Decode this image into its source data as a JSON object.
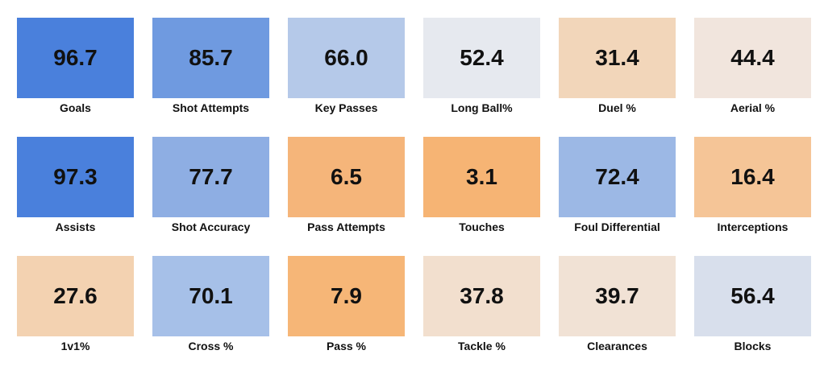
{
  "chart_data": {
    "type": "heatmap",
    "title": "",
    "metrics": [
      {
        "label": "Goals",
        "value": 96.7,
        "color": "#4a80dc"
      },
      {
        "label": "Shot Attempts",
        "value": 85.7,
        "color": "#6f9ae0"
      },
      {
        "label": "Key Passes",
        "value": 66.0,
        "color": "#b5c9e9"
      },
      {
        "label": "Long Ball%",
        "value": 52.4,
        "color": "#e6e9ef"
      },
      {
        "label": "Duel %",
        "value": 31.4,
        "color": "#f2d6ba"
      },
      {
        "label": "Aerial %",
        "value": 44.4,
        "color": "#f1e5dd"
      },
      {
        "label": "Assists",
        "value": 97.3,
        "color": "#4a80dc"
      },
      {
        "label": "Shot Accuracy",
        "value": 77.7,
        "color": "#8eaee3"
      },
      {
        "label": "Pass Attempts",
        "value": 6.5,
        "color": "#f5b57a"
      },
      {
        "label": "Touches",
        "value": 3.1,
        "color": "#f6b474"
      },
      {
        "label": "Foul Differential",
        "value": 72.4,
        "color": "#9cb8e5"
      },
      {
        "label": "Interceptions",
        "value": 16.4,
        "color": "#f5c597"
      },
      {
        "label": "1v1%",
        "value": 27.6,
        "color": "#f3d2b1"
      },
      {
        "label": "Cross %",
        "value": 70.1,
        "color": "#a6c0e8"
      },
      {
        "label": "Pass %",
        "value": 7.9,
        "color": "#f6b677"
      },
      {
        "label": "Tackle %",
        "value": 37.8,
        "color": "#f2dfce"
      },
      {
        "label": "Clearances",
        "value": 39.7,
        "color": "#f1e2d5"
      },
      {
        "label": "Blocks",
        "value": 56.4,
        "color": "#d8dfec"
      }
    ],
    "columns": 6,
    "rows": 3
  }
}
